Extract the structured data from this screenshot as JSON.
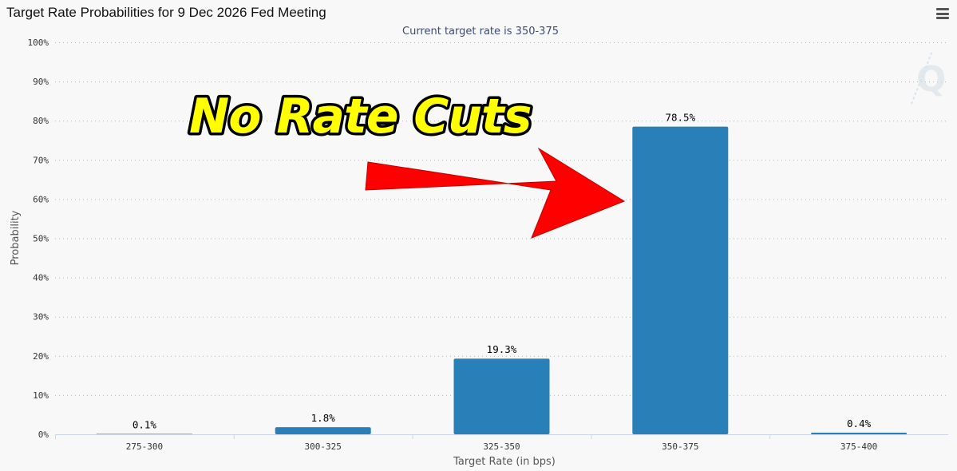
{
  "header": {
    "title": "Target Rate Probabilities for 9 Dec 2026 Fed Meeting"
  },
  "annotation": {
    "text": "No Rate Cuts",
    "text_color": "#ffff00",
    "arrow_color": "#ff0000"
  },
  "chart_data": {
    "type": "bar",
    "title": "",
    "subtitle": "Current target rate is 350-375",
    "xlabel": "Target Rate (in bps)",
    "ylabel": "Probability",
    "categories": [
      "275-300",
      "300-325",
      "325-350",
      "350-375",
      "375-400"
    ],
    "values": [
      0.1,
      1.8,
      19.3,
      78.5,
      0.4
    ],
    "data_labels": [
      "0.1%",
      "1.8%",
      "19.3%",
      "78.5%",
      "0.4%"
    ],
    "ylim": [
      0,
      100
    ],
    "yticks": [
      "0%",
      "10%",
      "20%",
      "30%",
      "40%",
      "50%",
      "60%",
      "70%",
      "80%",
      "90%",
      "100%"
    ],
    "bar_color": "#2980b9",
    "grid": true,
    "legend": "none"
  }
}
